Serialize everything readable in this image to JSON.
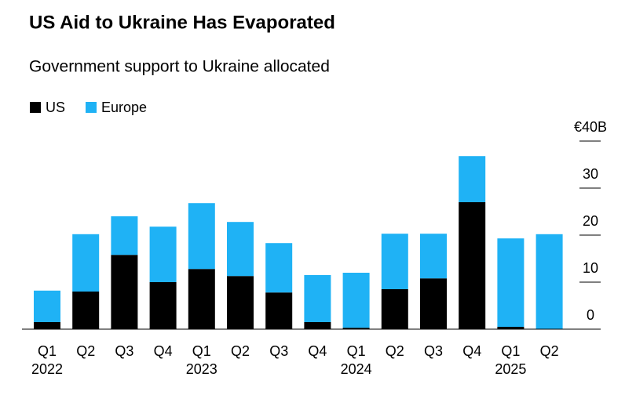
{
  "chart_data": {
    "type": "stacked_bar",
    "title": "US Aid to Ukraine Has Evaporated",
    "subtitle": "Government support to Ukraine allocated",
    "categories": [
      "Q1",
      "Q2",
      "Q3",
      "Q4",
      "Q1",
      "Q2",
      "Q3",
      "Q4",
      "Q1",
      "Q2",
      "Q3",
      "Q4",
      "Q1",
      "Q2"
    ],
    "x_groups": [
      "2022",
      null,
      null,
      null,
      "2023",
      null,
      null,
      null,
      "2024",
      null,
      null,
      null,
      "2025",
      null
    ],
    "series": [
      {
        "name": "US",
        "color": "#000000",
        "values": [
          1.5,
          8,
          15.8,
          10,
          12.8,
          11.3,
          7.8,
          1.5,
          0.3,
          8.5,
          10.8,
          27,
          0.5,
          0
        ]
      },
      {
        "name": "Europe",
        "color": "#1fb2f5",
        "values": [
          6.7,
          12.2,
          8.2,
          11.8,
          14,
          11.5,
          10.5,
          10,
          11.7,
          11.8,
          9.5,
          9.8,
          18.8,
          20.2
        ]
      }
    ],
    "ylim": [
      0,
      40
    ],
    "yticks": [
      0,
      10,
      20,
      30,
      {
        "value": 40,
        "label": "€40B"
      }
    ],
    "legend": "top-left"
  }
}
